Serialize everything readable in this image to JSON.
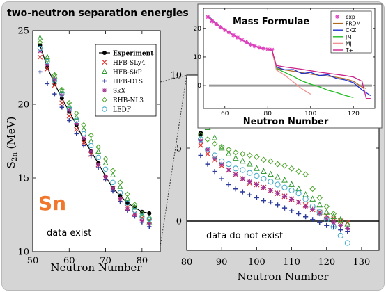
{
  "header": {
    "title": "two-neutron separation energies"
  },
  "colors": {
    "frame_bg": "#d5d5d5",
    "element_label": "#f0772c",
    "zero_line": "#000000",
    "inset_zero_line": "#999999"
  },
  "left_panel": {
    "element_label": "Sn",
    "note": "data exist"
  },
  "right_panel": {
    "note": "data do not exist"
  },
  "inset": {
    "title": "Mass Formulae"
  },
  "chart_data": [
    {
      "id": "left",
      "type": "scatter",
      "xlabel": "Neutron Number",
      "ylabel": "S2n (MeV)",
      "ylabel_main": "S",
      "ylabel_sub": "2n",
      "ylabel_unit": " (MeV)",
      "xlim": [
        50,
        85
      ],
      "ylim": [
        10,
        25
      ],
      "xticks": [
        50,
        60,
        70,
        80
      ],
      "yticks": [
        10,
        15,
        20,
        25
      ],
      "legend": {
        "placement": "top-right",
        "entries": [
          {
            "label": "Experiment",
            "series": "Experiment"
          },
          {
            "label": "HFB-SLy4",
            "series": "HFB-SLy4"
          },
          {
            "label": "HFB-SkP",
            "series": "HFB-SkP"
          },
          {
            "label": "HFB-D1S",
            "series": "HFB-D1S"
          },
          {
            "label": "SkX",
            "series": "SkX"
          },
          {
            "label": "RHB-NL3",
            "series": "RHB-NL3"
          },
          {
            "label": "LEDF",
            "series": "LEDF"
          }
        ]
      },
      "x": [
        52,
        54,
        56,
        58,
        60,
        62,
        64,
        66,
        68,
        70,
        72,
        74,
        76,
        78,
        80,
        82
      ],
      "series": [
        {
          "name": "Experiment",
          "marker": "dot",
          "color": "#000000",
          "line": true,
          "values": [
            24.0,
            22.5,
            21.4,
            20.4,
            19.5,
            18.6,
            17.6,
            16.8,
            16.0,
            15.1,
            14.3,
            13.8,
            13.3,
            13.0,
            12.7,
            12.6
          ]
        },
        {
          "name": "HFB-SLy4",
          "marker": "x",
          "color": "#e0342f",
          "values": [
            23.2,
            22.4,
            21.3,
            20.1,
            19.2,
            18.3,
            17.4,
            16.6,
            15.9,
            15.0,
            14.3,
            13.5,
            13.0,
            12.6,
            12.3,
            12.1
          ]
        },
        {
          "name": "HFB-SkP",
          "marker": "triangle",
          "color": "#2e9a2e",
          "values": [
            24.5,
            23.2,
            21.9,
            20.9,
            19.9,
            19.1,
            18.3,
            17.5,
            16.8,
            16.0,
            15.2,
            14.4,
            13.6,
            13.0,
            12.4,
            12.0
          ]
        },
        {
          "name": "HFB-D1S",
          "marker": "plus",
          "color": "#2c3a9a",
          "values": [
            22.2,
            21.4,
            20.7,
            19.8,
            18.9,
            18.0,
            17.2,
            16.5,
            15.7,
            14.9,
            14.1,
            13.4,
            12.8,
            12.4,
            12.0,
            11.7
          ]
        },
        {
          "name": "SkX",
          "marker": "star",
          "color": "#a03090",
          "values": [
            23.6,
            22.7,
            21.7,
            20.6,
            19.6,
            18.7,
            17.7,
            16.8,
            15.9,
            15.1,
            14.3,
            13.6,
            12.9,
            12.5,
            12.1,
            11.9
          ]
        },
        {
          "name": "RHB-NL3",
          "marker": "diamond",
          "color": "#4ca52a",
          "values": [
            24.2,
            23.0,
            22.0,
            21.0,
            20.1,
            19.4,
            18.6,
            17.9,
            17.1,
            16.3,
            15.5,
            14.7,
            13.9,
            13.2,
            12.6,
            12.3
          ]
        },
        {
          "name": "LEDF",
          "marker": "circle",
          "color": "#3aa8c8",
          "values": [
            23.8,
            22.9,
            21.6,
            20.7,
            19.7,
            18.9,
            18.0,
            17.2,
            16.4,
            15.6,
            14.7,
            14.0,
            13.3,
            12.8,
            12.4,
            12.2
          ]
        }
      ]
    },
    {
      "id": "right",
      "type": "scatter",
      "xlabel": "Neutron Number",
      "xlim": [
        80,
        135
      ],
      "ylim": [
        -2,
        10
      ],
      "xticks": [
        80,
        90,
        100,
        110,
        120,
        130
      ],
      "yticks": [
        0,
        5,
        10
      ],
      "x": [
        84,
        86,
        88,
        90,
        92,
        94,
        96,
        98,
        100,
        102,
        104,
        106,
        108,
        110,
        112,
        114,
        116,
        118,
        120,
        122,
        124,
        126
      ],
      "series": [
        {
          "name": "Experiment",
          "marker": "dot",
          "color": "#000000",
          "values": [
            6.0,
            null,
            null,
            null,
            null,
            null,
            null,
            null,
            null,
            null,
            null,
            null,
            null,
            null,
            null,
            null,
            null,
            null,
            null,
            null,
            null,
            null
          ]
        },
        {
          "name": "HFB-SLy4",
          "marker": "x",
          "color": "#e0342f",
          "values": [
            5.2,
            4.6,
            4.2,
            3.8,
            3.5,
            3.2,
            2.9,
            2.6,
            2.5,
            2.3,
            2.1,
            1.9,
            1.7,
            1.5,
            1.3,
            1.1,
            0.8,
            0.6,
            0.4,
            0.2,
            0.0,
            -0.1
          ]
        },
        {
          "name": "HFB-SkP",
          "marker": "triangle",
          "color": "#2e9a2e",
          "values": [
            7.3,
            6.4,
            5.7,
            5.0,
            4.6,
            4.3,
            4.1,
            3.9,
            3.6,
            3.4,
            3.2,
            3.0,
            2.8,
            2.5,
            2.2,
            1.8,
            1.5,
            1.1,
            0.6,
            0.3,
            0.1,
            -0.2
          ]
        },
        {
          "name": "HFB-D1S",
          "marker": "plus",
          "color": "#2c3a9a",
          "values": [
            4.5,
            3.9,
            3.4,
            2.9,
            2.5,
            2.2,
            2.0,
            1.8,
            1.6,
            1.4,
            1.3,
            1.1,
            0.9,
            0.7,
            0.5,
            0.3,
            0.1,
            -0.1,
            -0.3,
            -0.4,
            -0.6,
            -0.7
          ]
        },
        {
          "name": "SkX",
          "marker": "star",
          "color": "#a03090",
          "values": [
            5.5,
            4.9,
            4.3,
            3.9,
            3.5,
            3.2,
            2.9,
            2.7,
            2.5,
            2.3,
            2.1,
            1.9,
            1.7,
            1.5,
            1.3,
            1.0,
            0.8,
            0.5,
            0.2,
            -0.1,
            -0.3,
            -0.5
          ]
        },
        {
          "name": "RHB-NL3",
          "marker": "diamond",
          "color": "#4ca52a",
          "values": [
            5.9,
            5.6,
            5.3,
            5.1,
            4.9,
            4.7,
            4.6,
            4.5,
            4.4,
            4.2,
            4.1,
            3.9,
            3.8,
            3.6,
            3.4,
            3.2,
            2.2,
            1.6,
            1.0,
            0.5,
            0.0,
            null
          ]
        },
        {
          "name": "LEDF",
          "marker": "circle",
          "color": "#3aa8c8",
          "values": [
            5.6,
            4.9,
            4.5,
            4.1,
            3.9,
            3.6,
            3.5,
            3.3,
            3.1,
            2.9,
            2.7,
            2.5,
            2.3,
            2.1,
            1.9,
            1.5,
            1.0,
            0.6,
            0.1,
            -0.4,
            -1.0,
            -1.5
          ]
        }
      ]
    },
    {
      "id": "inset",
      "type": "line",
      "title": "Mass Formulae",
      "xlabel": "Neutron Number",
      "xlim": [
        50,
        130
      ],
      "ylim": [
        -8,
        27
      ],
      "xticks": [
        60,
        80,
        100,
        120
      ],
      "yticks": [
        0,
        10,
        20
      ],
      "legend": {
        "placement": "top-right",
        "entries": [
          {
            "label": "exp",
            "series": "exp"
          },
          {
            "label": "FRDM",
            "series": "FRDM"
          },
          {
            "label": "CKZ",
            "series": "CKZ"
          },
          {
            "label": "JM",
            "series": "JM"
          },
          {
            "label": "MJ",
            "series": "MJ"
          },
          {
            "label": "T+",
            "series": "T+"
          }
        ]
      },
      "series": [
        {
          "name": "exp",
          "marker": "star",
          "color": "#e040c0",
          "x": [
            52,
            54,
            56,
            58,
            60,
            62,
            64,
            66,
            68,
            70,
            72,
            74,
            76,
            78,
            80,
            82
          ],
          "values": [
            24.0,
            22.5,
            21.4,
            20.4,
            19.5,
            18.6,
            17.6,
            16.8,
            16.0,
            15.1,
            14.3,
            13.8,
            13.3,
            13.0,
            12.7,
            12.6
          ]
        },
        {
          "name": "FRDM",
          "color": "#b06a20",
          "x": [
            52,
            56,
            60,
            64,
            68,
            72,
            76,
            80,
            82,
            84,
            88,
            92,
            96,
            100,
            104,
            108,
            112,
            116,
            120,
            124,
            126
          ],
          "values": [
            24.0,
            21.5,
            19.5,
            17.6,
            15.9,
            14.4,
            13.3,
            12.6,
            12.3,
            6.0,
            5.5,
            5.0,
            4.5,
            4.0,
            3.6,
            3.3,
            2.9,
            2.4,
            1.5,
            -0.5,
            -1.0
          ]
        },
        {
          "name": "CKZ",
          "color": "#2233cc",
          "x": [
            52,
            56,
            60,
            64,
            68,
            72,
            76,
            80,
            82,
            84,
            88,
            92,
            96,
            100,
            104,
            108,
            112,
            116,
            120,
            124,
            128
          ],
          "values": [
            24.5,
            21.7,
            19.6,
            17.7,
            16.0,
            14.5,
            13.3,
            12.7,
            12.4,
            6.5,
            5.5,
            5.6,
            4.2,
            4.6,
            3.5,
            3.8,
            2.5,
            2.0,
            1.0,
            -1.5,
            -3.5
          ]
        },
        {
          "name": "JM",
          "color": "#22bb22",
          "x": [
            52,
            56,
            60,
            64,
            68,
            72,
            76,
            80,
            82,
            84,
            88,
            92,
            96,
            100,
            104,
            108,
            112,
            116,
            120
          ],
          "values": [
            24.2,
            21.6,
            19.5,
            17.6,
            15.9,
            14.4,
            13.3,
            12.6,
            12.2,
            6.0,
            4.6,
            3.2,
            1.6,
            0.5,
            -0.4,
            -1.6,
            -2.4,
            -3.4,
            -4.2
          ]
        },
        {
          "name": "MJ",
          "color": "#f09090",
          "x": [
            52,
            56,
            60,
            64,
            68,
            72,
            76,
            80,
            82,
            84,
            88,
            92,
            96,
            100
          ],
          "values": [
            24.3,
            21.6,
            19.6,
            17.6,
            16.0,
            14.4,
            13.3,
            12.7,
            12.3,
            5.5,
            3.6,
            1.2,
            -1.2,
            -3.0
          ]
        },
        {
          "name": "T+",
          "color": "#cc2288",
          "x": [
            52,
            56,
            60,
            64,
            68,
            72,
            76,
            80,
            82,
            84,
            88,
            92,
            96,
            100,
            104,
            108,
            112,
            116,
            120,
            124,
            126,
            128
          ],
          "values": [
            24.1,
            21.5,
            19.5,
            17.6,
            15.9,
            14.4,
            13.3,
            12.7,
            12.4,
            7.0,
            6.5,
            6.1,
            5.7,
            5.2,
            4.7,
            4.3,
            3.9,
            3.5,
            3.0,
            1.5,
            -4.5,
            -4.5
          ]
        }
      ]
    }
  ]
}
